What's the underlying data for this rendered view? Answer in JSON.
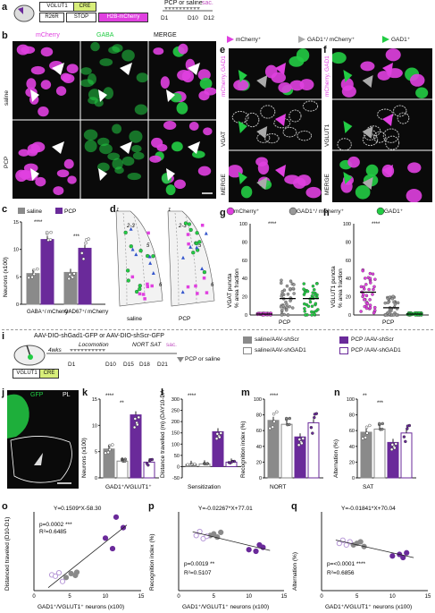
{
  "panel_letters": {
    "a": "a",
    "b": "b",
    "c": "c",
    "d": "d",
    "e": "e",
    "f": "f",
    "g": "g",
    "h": "h",
    "i": "i",
    "j": "j",
    "k": "k",
    "l": "l",
    "m": "m",
    "n": "n",
    "o": "o",
    "p": "p",
    "q": "q"
  },
  "panel_a": {
    "vglut1": "VGLUT1",
    "cre": "CRE",
    "r26r": "R26R",
    "stop": "STOP",
    "h2b": "H2B-mCherry",
    "treatment": "PCP or saline",
    "d1": "D1",
    "d10": "D10",
    "d12": "D12",
    "sac": "sac."
  },
  "panel_b": {
    "col_mcherry": "mCherry",
    "col_gaba": "GABA",
    "col_merge": "MERGE",
    "row_saline": "saline",
    "row_pcp": "PCP"
  },
  "legend_top": {
    "mcherry": "mCherry⁺",
    "gad_mcherry": "GAD1⁺/ mCherry⁺",
    "gad": "GAD1⁺"
  },
  "panel_e": {
    "row1": "mCherry, GAD1",
    "row2": "VGAT",
    "row3": "MERGE"
  },
  "panel_f": {
    "row1": "mCherry, GAD1",
    "row2": "VGLUT1",
    "row3": "MERGE"
  },
  "legend_mid": {
    "mcherry": "mCherry⁺",
    "gad_mcherry": "GAD1⁺/ mCherry⁺",
    "gad": "GAD1⁺"
  },
  "panel_c": {
    "legend_saline": "saline",
    "legend_pcp": "PCP",
    "ylabel": "Neurons (x100)",
    "cat1": "GABA⁺/ mCherry⁺",
    "cat2": "GAD67⁺/ mCherry⁺",
    "sig": "****",
    "sig2": "***"
  },
  "panel_d": {
    "label_saline": "saline",
    "label_pcp": "PCP",
    "l1": "1",
    "l23": "2-3",
    "l5": "5",
    "l6": "6"
  },
  "panel_g": {
    "ylabel1": "VGAT puncta",
    "ylabel2": "% area fraction",
    "xlabel": "PCP",
    "sig": "****"
  },
  "panel_h": {
    "ylabel1": "VGLUT1 puncta",
    "ylabel2": "% area fraction",
    "xlabel": "PCP",
    "sig": "****"
  },
  "panel_i": {
    "virus": "AAV-DIO-shGad1-GFP or AAV-DIO-shScr-GFP",
    "weeks": "4wks",
    "locomotion": "Locomotion",
    "nort": "NORT",
    "sat": "SAT",
    "sac": "sac.",
    "d1": "D1",
    "d10": "D10",
    "d15": "D15",
    "d18": "D18",
    "d21": "D21",
    "pcp_saline": "PCP or saline",
    "vglut1": "VGLUT1",
    "cre": "CRE",
    "leg1": "saline/AAV-shScr",
    "leg2": "PCP /AAV-shScr",
    "leg3": "saline/AAV-shGAD1",
    "leg4": "PCP /AAV-shGAD1"
  },
  "panel_j": {
    "gfp": "GFP",
    "pl": "PL"
  },
  "panel_k": {
    "ylabel": "Neurons (x100)",
    "xlabel": "GAD1⁺/VGLUT1⁺",
    "sig": "****",
    "sig2": "**"
  },
  "panel_l": {
    "ylabel": "Distance travelled (m) (DAY10-DAY1)",
    "xlabel": "Sensitization",
    "sig": "****"
  },
  "panel_m": {
    "ylabel": "Recognition index (%)",
    "xlabel": "NORT",
    "sig": "****"
  },
  "panel_n": {
    "ylabel": "Alternation (%)",
    "xlabel": "SAT",
    "sig": "**",
    "sig2": "***"
  },
  "panel_o": {
    "eq": "Y=0.1509*X-58.30",
    "p": "p=0.0002 ***",
    "r2": "R²=0.6485",
    "ylabel": "Distanced traveled (D10-D1)",
    "xlabel": "GAD1⁺/VGLUT1⁺ neurons (x100)"
  },
  "panel_p": {
    "eq": "Y=-0.02267*X+77.01",
    "p": "p=0.0019 **",
    "r2": "R²=0.5107",
    "ylabel": "Recognition index (%)",
    "xlabel": "GAD1⁺/VGLUT1⁺ neurons (x100)"
  },
  "panel_q": {
    "eq": "Y=-0.01841*X+70.04",
    "p": "p=<0.0001 ****",
    "r2": "R²=0.6856",
    "ylabel": "Alternation (%)",
    "xlabel": "GAD1⁺/VGLUT1⁺ neurons (x100)"
  },
  "colors": {
    "magenta": "#e040e0",
    "purple": "#6a2a9a",
    "green": "#22cc44",
    "gray": "#8a8a8a",
    "light_purple": "#b89ad8"
  },
  "chart_data": [
    {
      "type": "bar",
      "panel": "c",
      "categories": [
        "GABA⁺/ mCherry⁺",
        "GAD67⁺/ mCherry⁺"
      ],
      "series": [
        {
          "name": "saline",
          "values": [
            5.6,
            5.8
          ]
        },
        {
          "name": "PCP",
          "values": [
            11.8,
            10.2
          ]
        }
      ],
      "ylim": [
        0,
        15
      ],
      "yticks": [
        0,
        5,
        10,
        15
      ]
    },
    {
      "type": "bar",
      "panel": "k",
      "categories": [
        "GAD1⁺/VGLUT1⁺"
      ],
      "series": [
        {
          "name": "saline/AAV-shScr",
          "values": [
            5.5
          ]
        },
        {
          "name": "saline/AAV-shGAD1",
          "values": [
            3.2
          ]
        },
        {
          "name": "PCP /AAV-shScr",
          "values": [
            12.0
          ]
        },
        {
          "name": "PCP /AAV-shGAD1",
          "values": [
            3.0
          ]
        }
      ],
      "ylim": [
        0,
        15
      ],
      "yticks": [
        0,
        5,
        10,
        15
      ]
    },
    {
      "type": "bar",
      "panel": "l",
      "categories": [
        "Sensitization"
      ],
      "series": [
        {
          "name": "saline/AAV-shScr",
          "values": [
            10
          ]
        },
        {
          "name": "saline/AAV-shGAD1",
          "values": [
            12
          ]
        },
        {
          "name": "PCP /AAV-shScr",
          "values": [
            155
          ]
        },
        {
          "name": "PCP /AAV-shGAD1",
          "values": [
            20
          ]
        }
      ],
      "ylim": [
        -50,
        300
      ],
      "yticks": [
        -50,
        0,
        50,
        100,
        150,
        200,
        250,
        300
      ]
    },
    {
      "type": "bar",
      "panel": "m",
      "categories": [
        "NORT"
      ],
      "series": [
        {
          "name": "saline/AAV-shScr",
          "values": [
            73
          ]
        },
        {
          "name": "saline/AAV-shGAD1",
          "values": [
            68
          ]
        },
        {
          "name": "PCP /AAV-shScr",
          "values": [
            52
          ]
        },
        {
          "name": "PCP /AAV-shGAD1",
          "values": [
            70
          ]
        }
      ],
      "ylim": [
        0,
        100
      ],
      "yticks": [
        0,
        20,
        40,
        60,
        80,
        100
      ]
    },
    {
      "type": "bar",
      "panel": "n",
      "categories": [
        "SAT"
      ],
      "series": [
        {
          "name": "saline/AAV-shScr",
          "values": [
            58
          ]
        },
        {
          "name": "saline/AAV-shGAD1",
          "values": [
            62
          ]
        },
        {
          "name": "PCP /AAV-shScr",
          "values": [
            45
          ]
        },
        {
          "name": "PCP /AAV-shGAD1",
          "values": [
            57
          ]
        }
      ],
      "ylim": [
        0,
        100
      ],
      "yticks": [
        0,
        20,
        40,
        60,
        80,
        100
      ]
    },
    {
      "type": "scatter",
      "panel": "o",
      "xlim": [
        0,
        15
      ],
      "ylim": [
        -500,
        2500
      ],
      "xticks": [
        0,
        5,
        10,
        15
      ],
      "series": [
        {
          "name": "saline",
          "x": [
            4.5,
            5.2,
            5.8,
            6.0
          ],
          "y": [
            0,
            150,
            80,
            200
          ]
        },
        {
          "name": "PCP",
          "x": [
            10,
            11,
            11.5,
            12.5
          ],
          "y": [
            1500,
            1100,
            2300,
            1900
          ]
        },
        {
          "name": "shGAD1",
          "x": [
            2.5,
            3.0,
            3.5,
            4.0
          ],
          "y": [
            100,
            50,
            180,
            -150
          ]
        }
      ]
    },
    {
      "type": "scatter",
      "panel": "p",
      "xlim": [
        0,
        15
      ],
      "ylim": [
        0,
        100
      ],
      "xticks": [
        0,
        5,
        10,
        15
      ],
      "series": [
        {
          "name": "saline",
          "x": [
            4.5,
            5.0,
            5.5,
            6.0
          ],
          "y": [
            70,
            72,
            68,
            74
          ]
        },
        {
          "name": "PCP",
          "x": [
            10,
            11,
            11.5,
            12
          ],
          "y": [
            52,
            50,
            58,
            55
          ]
        },
        {
          "name": "shGAD1",
          "x": [
            2.5,
            3.0,
            3.5,
            4.0
          ],
          "y": [
            70,
            75,
            66,
            69
          ]
        }
      ]
    },
    {
      "type": "scatter",
      "panel": "q",
      "xlim": [
        0,
        15
      ],
      "ylim": [
        0,
        100
      ],
      "xticks": [
        0,
        5,
        10,
        15
      ],
      "series": [
        {
          "name": "saline",
          "x": [
            4.5,
            5.0,
            5.5,
            6.0
          ],
          "y": [
            58,
            60,
            62,
            56
          ]
        },
        {
          "name": "PCP",
          "x": [
            10,
            11,
            11.5,
            12
          ],
          "y": [
            44,
            46,
            42,
            48
          ]
        },
        {
          "name": "shGAD1",
          "x": [
            2.5,
            3.0,
            3.5,
            4.0
          ],
          "y": [
            60,
            64,
            58,
            62
          ]
        }
      ]
    }
  ]
}
